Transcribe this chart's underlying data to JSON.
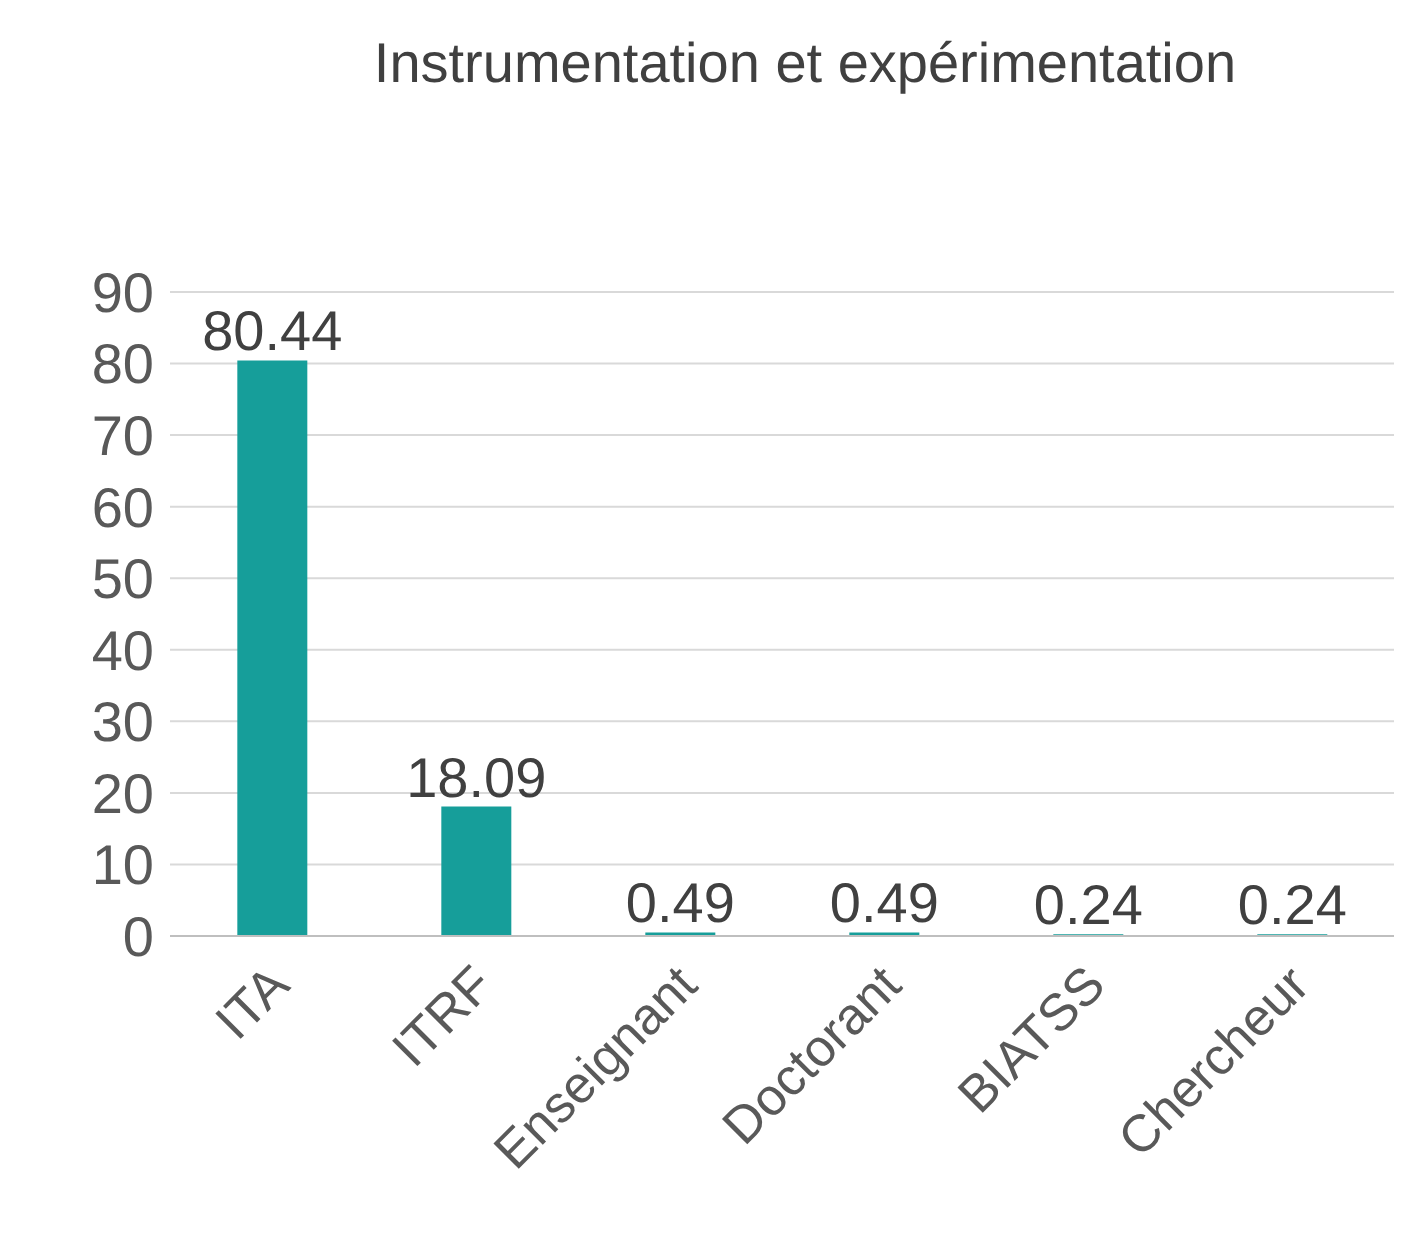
{
  "chart_data": {
    "type": "bar",
    "title": "Instrumentation et expérimentation",
    "categories": [
      "ITA",
      "ITRF",
      "Enseignant",
      "Doctorant",
      "BIATSS",
      "Chercheur"
    ],
    "values": [
      80.44,
      18.09,
      0.49,
      0.49,
      0.24,
      0.24
    ],
    "color": "#169e9a",
    "ylim": [
      0,
      90
    ],
    "yticks": [
      0,
      10,
      20,
      30,
      40,
      50,
      60,
      70,
      80,
      90
    ],
    "grid": "y",
    "data_labels": true
  }
}
